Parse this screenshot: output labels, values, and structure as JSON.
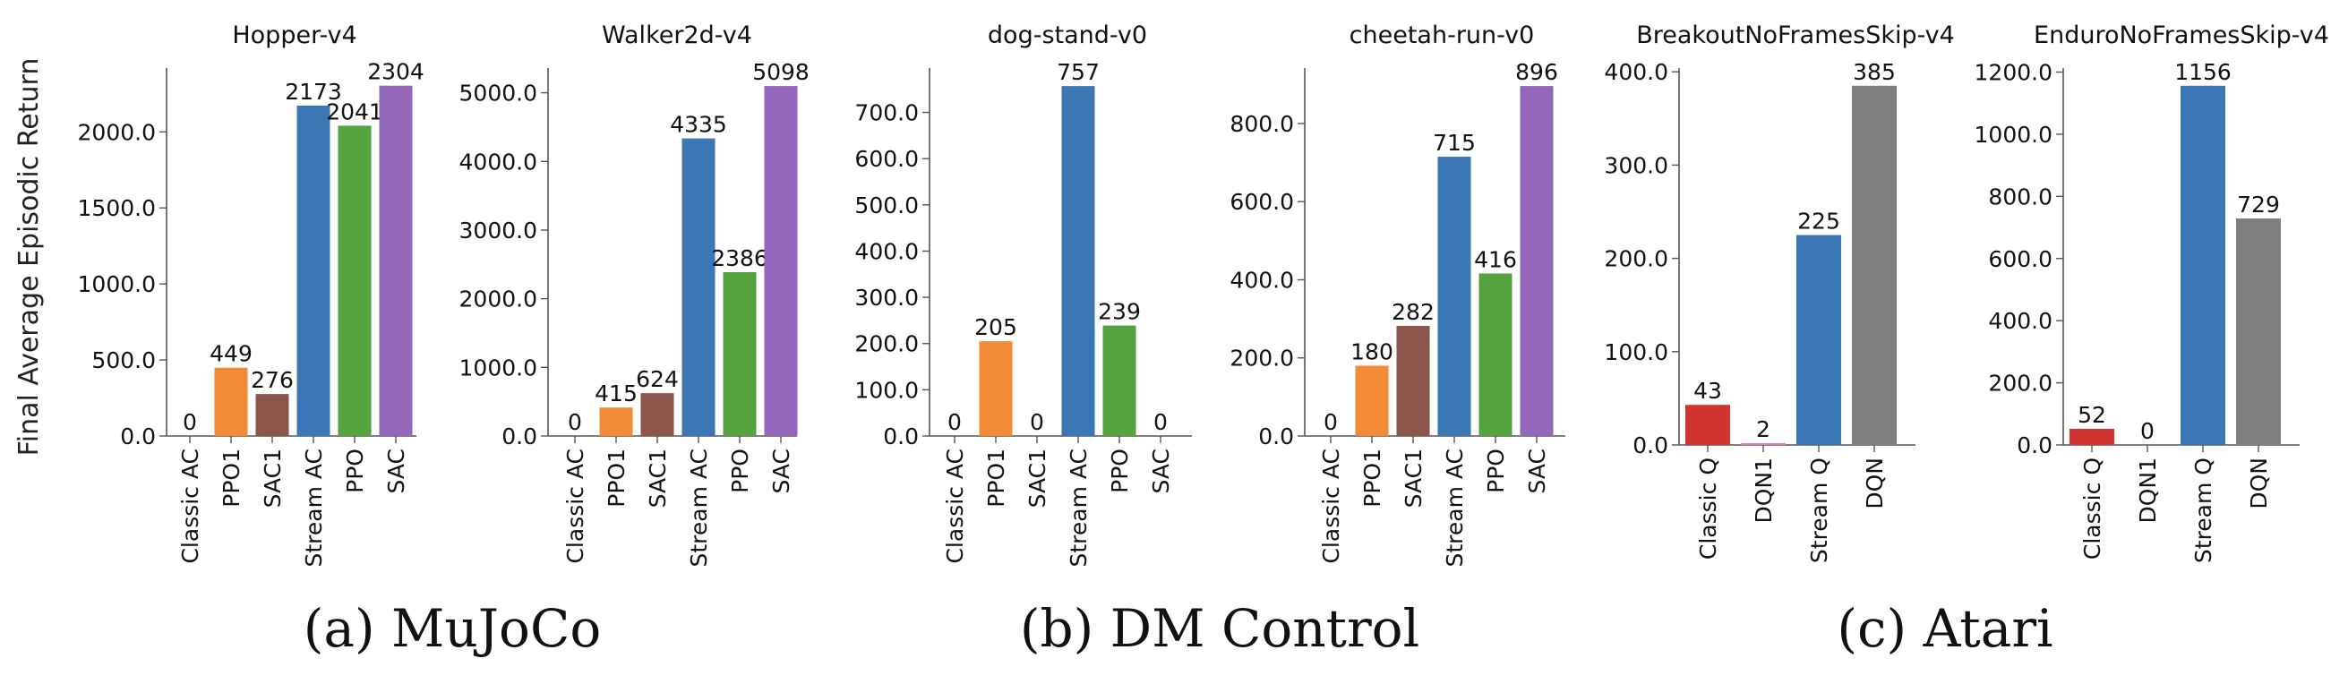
{
  "figure": {
    "ylabel": "Final Average Episodic Return",
    "captions": [
      "(a) MuJoCo",
      "(b) DM Control",
      "(c) Atari"
    ]
  },
  "colors": {
    "Classic AC": "#d62728",
    "PPO1": "#f28a36",
    "SAC1": "#8c564b",
    "Stream AC": "#3a77b4",
    "PPO": "#54a33f",
    "SAC": "#9467bd",
    "Classic Q": "#d0352f",
    "DQN1": "#e377c2",
    "Stream Q": "#3a77b4",
    "DQN": "#7f7f7f"
  },
  "chart_data": [
    {
      "type": "bar",
      "title": "Hopper-v4",
      "categories": [
        "Classic AC",
        "PPO1",
        "SAC1",
        "Stream AC",
        "PPO",
        "SAC"
      ],
      "values": [
        0,
        449,
        276,
        2173,
        2041,
        2304
      ],
      "labels": [
        "0",
        "449",
        "276",
        "2173",
        "2041",
        "2304"
      ],
      "yticks": [
        "0.0",
        "500.0",
        "1000.0",
        "1500.0",
        "2000.0"
      ],
      "ytick_values": [
        0,
        500,
        1000,
        1500,
        2000
      ],
      "ylim": [
        0,
        2420
      ]
    },
    {
      "type": "bar",
      "title": "Walker2d-v4",
      "categories": [
        "Classic AC",
        "PPO1",
        "SAC1",
        "Stream AC",
        "PPO",
        "SAC"
      ],
      "values": [
        0,
        415,
        624,
        4335,
        2386,
        5098
      ],
      "labels": [
        "0",
        "415",
        "624",
        "4335",
        "2386",
        "5098"
      ],
      "yticks": [
        "0.0",
        "1000.0",
        "2000.0",
        "3000.0",
        "4000.0",
        "5000.0"
      ],
      "ytick_values": [
        0,
        1000,
        2000,
        3000,
        4000,
        5000
      ],
      "ylim": [
        0,
        5360
      ]
    },
    {
      "type": "bar",
      "title": "dog-stand-v0",
      "categories": [
        "Classic AC",
        "PPO1",
        "SAC1",
        "Stream AC",
        "PPO",
        "SAC"
      ],
      "values": [
        0,
        205,
        0,
        757,
        239,
        0
      ],
      "labels": [
        "0",
        "205",
        "0",
        "757",
        "239",
        "0"
      ],
      "yticks": [
        "0.0",
        "100.0",
        "200.0",
        "300.0",
        "400.0",
        "500.0",
        "600.0",
        "700.0"
      ],
      "ytick_values": [
        0,
        100,
        200,
        300,
        400,
        500,
        600,
        700
      ],
      "ylim": [
        0,
        796
      ]
    },
    {
      "type": "bar",
      "title": "cheetah-run-v0",
      "categories": [
        "Classic AC",
        "PPO1",
        "SAC1",
        "Stream AC",
        "PPO",
        "SAC"
      ],
      "values": [
        0,
        180,
        282,
        715,
        416,
        896
      ],
      "labels": [
        "0",
        "180",
        "282",
        "715",
        "416",
        "896"
      ],
      "yticks": [
        "0.0",
        "200.0",
        "400.0",
        "600.0",
        "800.0"
      ],
      "ytick_values": [
        0,
        200,
        400,
        600,
        800
      ],
      "ylim": [
        0,
        942
      ]
    },
    {
      "type": "bar",
      "title": "BreakoutNoFramesSkip-v4",
      "categories": [
        "Classic Q",
        "DQN1",
        "Stream Q",
        "DQN"
      ],
      "values": [
        43,
        2,
        225,
        385
      ],
      "labels": [
        "43",
        "2",
        "225",
        "385"
      ],
      "yticks": [
        "0.0",
        "100.0",
        "200.0",
        "300.0",
        "400.0"
      ],
      "ytick_values": [
        0,
        100,
        200,
        300,
        400
      ],
      "ylim": [
        0,
        404
      ]
    },
    {
      "type": "bar",
      "title": "EnduroNoFramesSkip-v4",
      "categories": [
        "Classic Q",
        "DQN1",
        "Stream Q",
        "DQN"
      ],
      "values": [
        52,
        0,
        1156,
        729
      ],
      "labels": [
        "52",
        "0",
        "1156",
        "729"
      ],
      "yticks": [
        "0.0",
        "200.0",
        "400.0",
        "600.0",
        "800.0",
        "1000.0",
        "1200.0"
      ],
      "ytick_values": [
        0,
        200,
        400,
        600,
        800,
        1000,
        1200
      ],
      "ylim": [
        0,
        1213
      ]
    }
  ]
}
